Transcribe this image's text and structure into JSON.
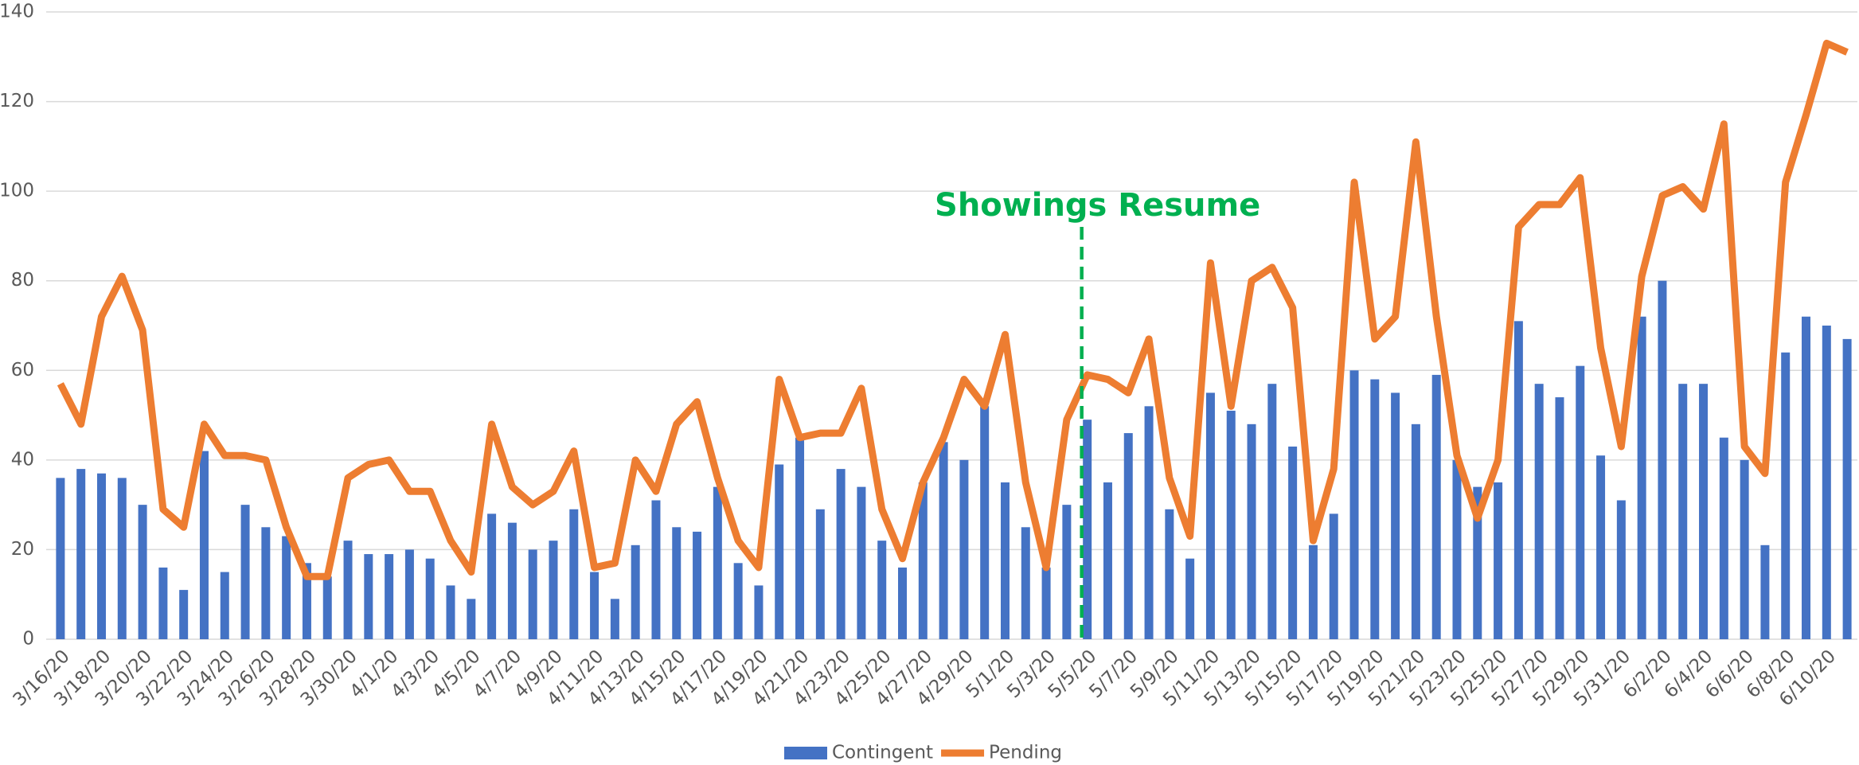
{
  "chart_data": {
    "type": "bar_line",
    "categories": [
      "3/16/20",
      null,
      "3/18/20",
      null,
      "3/20/20",
      null,
      "3/22/20",
      null,
      "3/24/20",
      null,
      "3/26/20",
      null,
      "3/28/20",
      null,
      "3/30/20",
      null,
      "4/1/20",
      null,
      "4/3/20",
      null,
      "4/5/20",
      null,
      "4/7/20",
      null,
      "4/9/20",
      null,
      "4/11/20",
      null,
      "4/13/20",
      null,
      "4/15/20",
      null,
      "4/17/20",
      null,
      "4/19/20",
      null,
      "4/21/20",
      null,
      "4/23/20",
      null,
      "4/25/20",
      null,
      "4/27/20",
      null,
      "4/29/20",
      null,
      "5/1/20",
      null,
      "5/3/20",
      null,
      "5/5/20",
      null,
      "5/7/20",
      null,
      "5/9/20",
      null,
      "5/11/20",
      null,
      "5/13/20",
      null,
      "5/15/20",
      null,
      "5/17/20",
      null,
      "5/19/20",
      null,
      "5/21/20",
      null,
      "5/23/20",
      null,
      "5/25/20",
      null,
      "5/27/20",
      null,
      "5/29/20",
      null,
      "5/31/20",
      null,
      "6/2/20",
      null,
      "6/4/20",
      null,
      "6/6/20",
      null,
      "6/8/20",
      null,
      "6/10/20",
      null
    ],
    "series": [
      {
        "name": "Contingent",
        "kind": "bar",
        "color": "#4472c4",
        "values": [
          36,
          38,
          37,
          36,
          30,
          16,
          11,
          42,
          15,
          30,
          25,
          23,
          17,
          14,
          22,
          19,
          19,
          20,
          18,
          12,
          9,
          28,
          26,
          20,
          22,
          29,
          15,
          9,
          21,
          31,
          25,
          24,
          34,
          17,
          12,
          39,
          45,
          29,
          38,
          34,
          22,
          16,
          35,
          44,
          40,
          52,
          35,
          25,
          16,
          30,
          49,
          35,
          46,
          52,
          29,
          18,
          55,
          51,
          48,
          57,
          43,
          21,
          28,
          60,
          58,
          55,
          48,
          59,
          40,
          34,
          35,
          71,
          57,
          54,
          61,
          41,
          31,
          72,
          80,
          57,
          57,
          45,
          40,
          21,
          64,
          72,
          70,
          67
        ]
      },
      {
        "name": "Pending",
        "kind": "line",
        "color": "#ed7d31",
        "values": [
          57,
          48,
          72,
          81,
          69,
          29,
          25,
          48,
          41,
          41,
          40,
          25,
          14,
          14,
          36,
          39,
          40,
          33,
          33,
          22,
          15,
          48,
          34,
          30,
          33,
          42,
          16,
          17,
          40,
          33,
          48,
          53,
          36,
          22,
          16,
          58,
          45,
          46,
          46,
          56,
          29,
          18,
          35,
          45,
          58,
          52,
          68,
          35,
          16,
          49,
          59,
          58,
          55,
          67,
          36,
          23,
          84,
          52,
          80,
          83,
          74,
          22,
          38,
          102,
          67,
          72,
          111,
          72,
          41,
          27,
          40,
          92,
          97,
          97,
          103,
          65,
          43,
          81,
          99,
          101,
          96,
          115,
          43,
          37,
          102,
          117,
          133,
          131
        ]
      }
    ],
    "ylim": [
      0,
      140
    ],
    "yticks": [
      0,
      20,
      40,
      60,
      80,
      100,
      120,
      140
    ],
    "grid": true,
    "legend": "bottom",
    "annotation": {
      "text": "Showings Resume",
      "x": "5/5/20",
      "color": "#00b050"
    }
  }
}
